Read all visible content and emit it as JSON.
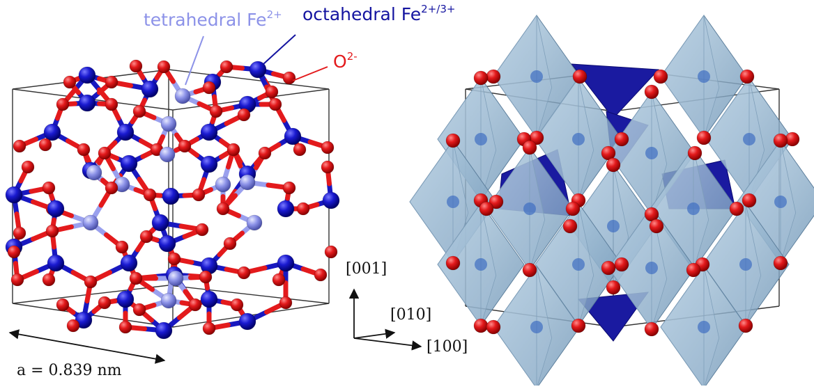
{
  "labels": {
    "tetrahedral": {
      "text": "tetrahedral Fe",
      "sup": "2+"
    },
    "octahedral": {
      "text": "octahedral Fe",
      "sup": "2+/3+"
    },
    "oxygen": {
      "text": "O",
      "sup": "2-"
    }
  },
  "lattice": {
    "text": "a = 0.839 nm"
  },
  "directions": {
    "d001": "[001]",
    "d010": "[010]",
    "d100": "[100]"
  },
  "colors": {
    "oxygen": "#e31a1c",
    "octahedral_fe": "#1414c8",
    "tetrahedral_fe": "#8c92e8",
    "polyhedron_fill": "#8fb3cf",
    "tetrahedron_fill": "#1a1aa0"
  }
}
